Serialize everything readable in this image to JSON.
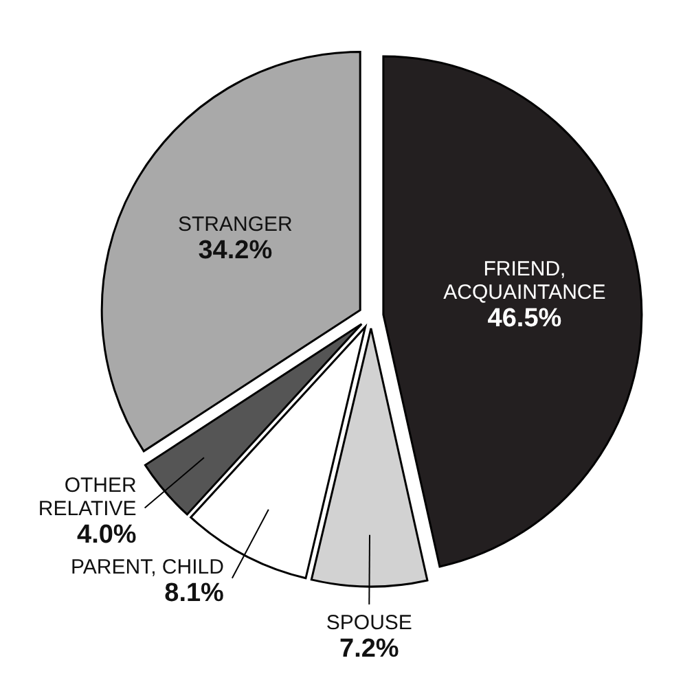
{
  "chart_data": {
    "type": "pie",
    "categories": [
      "FRIEND,\nACQUAINTANCE",
      "SPOUSE",
      "PARENT, CHILD",
      "OTHER\nRELATIVE",
      "STRANGER"
    ],
    "values": [
      46.5,
      7.2,
      8.1,
      4.0,
      34.2
    ],
    "colors": [
      "#231f20",
      "#d2d2d2",
      "#ffffff",
      "#555555",
      "#a9a9a9"
    ],
    "value_labels": [
      "46.5%",
      "7.2%",
      "8.1%",
      "4.0%",
      "34.2%"
    ]
  }
}
